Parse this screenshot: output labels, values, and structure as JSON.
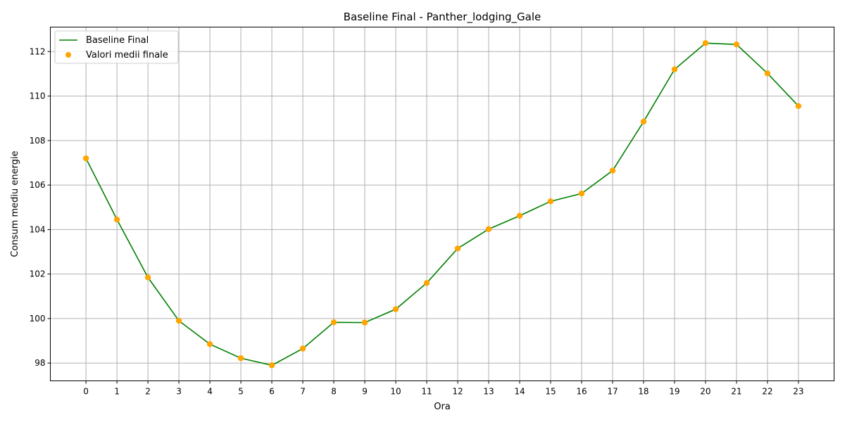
{
  "chart_data": {
    "type": "line",
    "title": "Baseline Final - Panther_lodging_Gale",
    "xlabel": "Ora",
    "ylabel": "Consum mediu energie",
    "x": [
      0,
      1,
      2,
      3,
      4,
      5,
      6,
      7,
      8,
      9,
      10,
      11,
      12,
      13,
      14,
      15,
      16,
      17,
      18,
      19,
      20,
      21,
      22,
      23
    ],
    "x_tick_labels": [
      "0",
      "1",
      "2",
      "3",
      "4",
      "5",
      "6",
      "7",
      "8",
      "9",
      "10",
      "11",
      "12",
      "13",
      "14",
      "15",
      "16",
      "17",
      "18",
      "19",
      "20",
      "21",
      "22",
      "23"
    ],
    "y_ticks": [
      98,
      100,
      102,
      104,
      106,
      108,
      110,
      112
    ],
    "y_tick_labels": [
      "98",
      "100",
      "102",
      "104",
      "106",
      "108",
      "110",
      "112"
    ],
    "xlim": [
      -1.15,
      24.15
    ],
    "ylim": [
      97.2,
      113.1
    ],
    "grid": true,
    "legend_position": "top-left",
    "series": [
      {
        "name": "Baseline Final",
        "kind": "line",
        "color": "#008000",
        "values": [
          107.2,
          104.45,
          101.85,
          99.9,
          98.85,
          98.22,
          97.9,
          98.65,
          99.83,
          99.82,
          100.42,
          101.6,
          103.15,
          104.02,
          104.62,
          105.27,
          105.62,
          106.65,
          108.85,
          111.2,
          112.38,
          112.32,
          111.02,
          109.55
        ]
      },
      {
        "name": "Valori medii finale",
        "kind": "scatter",
        "color": "#FFA500",
        "values": [
          107.2,
          104.45,
          101.85,
          99.9,
          98.85,
          98.22,
          97.9,
          98.65,
          99.83,
          99.82,
          100.42,
          101.6,
          103.15,
          104.02,
          104.62,
          105.27,
          105.62,
          106.65,
          108.85,
          111.2,
          112.38,
          112.32,
          111.02,
          109.55
        ]
      }
    ]
  }
}
